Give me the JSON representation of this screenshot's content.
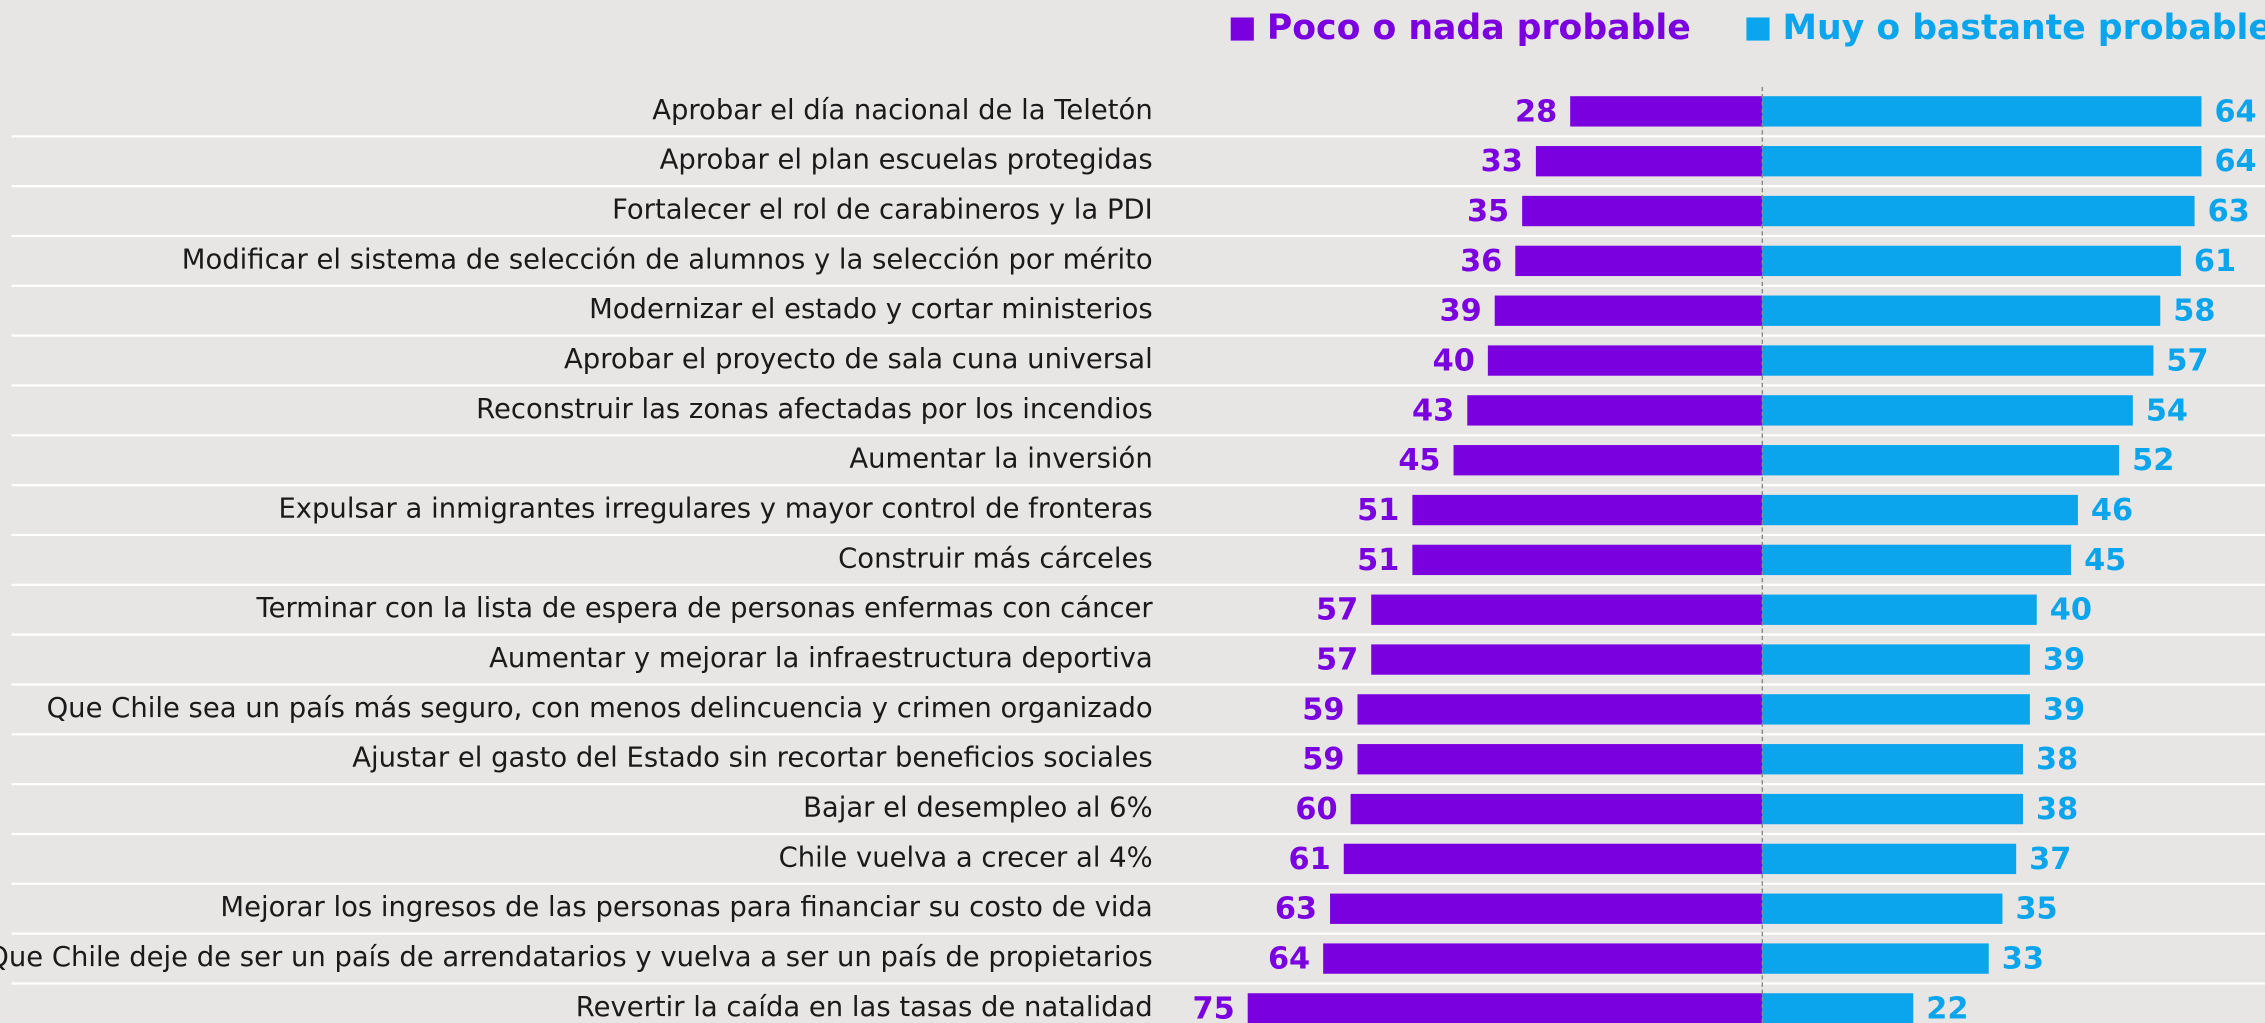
{
  "chart_data": {
    "type": "bar",
    "orientation": "horizontal-diverging",
    "categories": [
      "Aprobar el día nacional de la Teletón",
      "Aprobar el plan escuelas protegidas",
      "Fortalecer el rol de carabineros y la PDI",
      "Modificar el sistema de selección de alumnos y la selección por mérito",
      "Modernizar el estado y cortar ministerios",
      "Aprobar el proyecto de sala cuna universal",
      "Reconstruir las zonas afectadas por los incendios",
      "Aumentar la inversión",
      "Expulsar a inmigrantes irregulares y mayor control de fronteras",
      "Construir más cárceles",
      "Terminar con la lista de espera de personas enfermas con cáncer",
      "Aumentar y mejorar la infraestructura deportiva",
      "Que Chile sea un país más seguro, con menos delincuencia y crimen organizado",
      "Ajustar el gasto del Estado sin recortar beneficios sociales",
      "Bajar el desempleo al 6%",
      "Chile vuelva a crecer al 4%",
      "Mejorar los ingresos de las personas para financiar su costo de vida",
      "Que Chile deje de ser un país de arrendatarios y vuelva a ser un país de propietarios",
      "Revertir la caída en las tasas de natalidad"
    ],
    "series": [
      {
        "name": "Poco o nada probable",
        "color": "#7b00e0",
        "values": [
          28,
          33,
          35,
          36,
          39,
          40,
          43,
          45,
          51,
          51,
          57,
          57,
          59,
          59,
          60,
          61,
          63,
          64,
          75
        ]
      },
      {
        "name": "Muy o bastante probable",
        "color": "#0aa5ec",
        "values": [
          64,
          64,
          63,
          61,
          58,
          57,
          54,
          52,
          46,
          45,
          40,
          39,
          39,
          38,
          38,
          37,
          35,
          33,
          22
        ]
      }
    ]
  }
}
